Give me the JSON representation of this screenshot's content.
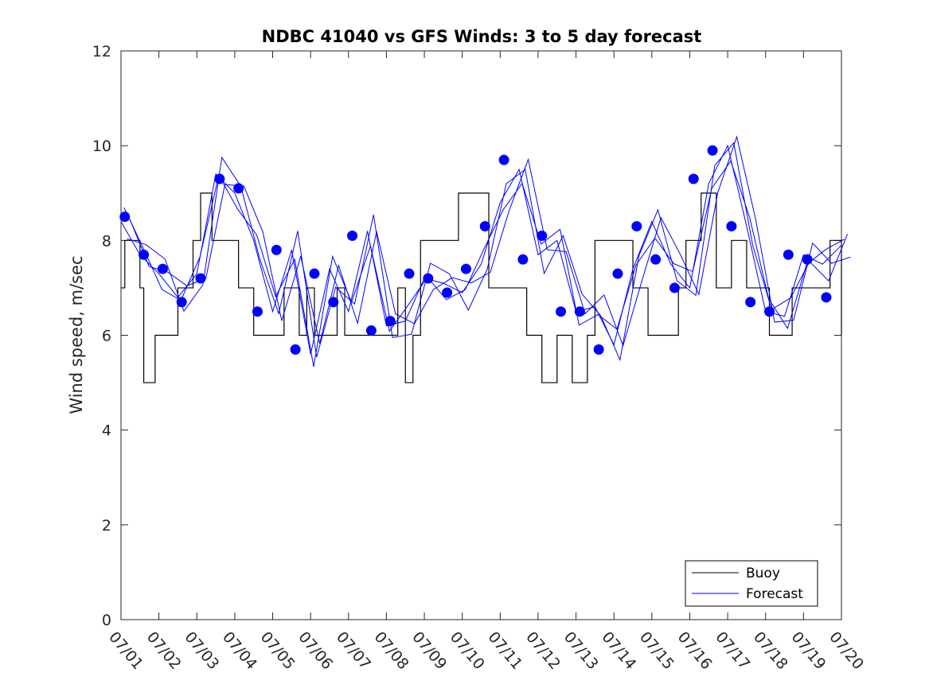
{
  "chart_data": {
    "type": "line",
    "title": "NDBC 41040 vs GFS Winds: 3 to 5 day forecast",
    "xlabel": "",
    "ylabel": "Wind speed, m/sec",
    "x_tick_labels": [
      "07/01",
      "07/02",
      "07/03",
      "07/04",
      "07/05",
      "07/06",
      "07/07",
      "07/08",
      "07/09",
      "07/10",
      "07/11",
      "07/12",
      "07/13",
      "07/14",
      "07/15",
      "07/16",
      "07/17",
      "07/18",
      "07/19",
      "07/20"
    ],
    "xlim": [
      "07/01",
      "07/20"
    ],
    "ylim": [
      0,
      12
    ],
    "y_ticks": [
      0,
      2,
      4,
      6,
      8,
      10,
      12
    ],
    "grid": false,
    "legend_position": "bottom-right",
    "colors": {
      "buoy": "#000000",
      "forecast": "#0000ff",
      "markers": "#0000ff"
    },
    "series": [
      {
        "name": "Buoy",
        "style": "step",
        "x": [
          0.0,
          0.1,
          0.3,
          0.5,
          0.6,
          0.9,
          1.0,
          1.1,
          1.3,
          1.5,
          1.7,
          1.9,
          2.1,
          2.3,
          2.4,
          2.6,
          2.9,
          3.1,
          3.3,
          3.5,
          3.7,
          3.9,
          4.1,
          4.3,
          4.5,
          4.7,
          4.9,
          5.1,
          5.3,
          5.5,
          5.7,
          5.9,
          6.1,
          6.3,
          6.5,
          6.7,
          6.9,
          7.1,
          7.3,
          7.5,
          7.7,
          7.9,
          8.1,
          8.3,
          8.5,
          8.7,
          8.9,
          9.1,
          9.3,
          9.5,
          9.7,
          9.9,
          10.1,
          10.3,
          10.5,
          10.7,
          10.9,
          11.1,
          11.3,
          11.5,
          11.7,
          11.9,
          12.1,
          12.3,
          12.5,
          12.7,
          12.9,
          13.1,
          13.3,
          13.5,
          13.7,
          13.9,
          14.1,
          14.3,
          14.5,
          14.7,
          14.9,
          15.1,
          15.3,
          15.5,
          15.7,
          15.9,
          16.1,
          16.3,
          16.5,
          16.7,
          16.9,
          17.1,
          17.3,
          17.5,
          17.7,
          17.9,
          18.1,
          18.3,
          18.5,
          18.7,
          18.9,
          19.0
        ],
        "values": [
          7,
          8,
          8,
          7,
          5,
          6,
          6,
          6,
          6,
          7,
          7,
          8,
          9,
          9,
          8,
          8,
          8,
          7,
          7,
          6,
          6,
          6,
          6,
          7,
          7,
          6,
          7,
          6,
          6,
          6,
          7,
          6,
          6,
          6,
          6,
          6,
          6,
          6,
          7,
          5,
          6,
          8,
          8,
          8,
          8,
          8,
          9,
          9,
          9,
          9,
          7,
          7,
          7,
          7,
          7,
          6,
          6,
          5,
          5,
          6,
          6,
          5,
          5,
          6,
          8,
          8,
          8,
          8,
          8,
          7,
          7,
          6,
          6,
          6,
          6,
          7,
          8,
          8,
          9,
          9,
          7,
          7,
          8,
          8,
          7,
          7,
          7,
          6,
          6,
          6,
          7,
          7,
          7,
          7,
          7,
          8,
          8,
          6
        ]
      },
      {
        "name": "Forecast",
        "style": "line",
        "note_series_count": 4,
        "x": [
          0.0,
          0.5,
          1.0,
          1.5,
          2.0,
          2.5,
          3.0,
          3.5,
          4.0,
          4.5,
          5.0,
          5.5,
          6.0,
          6.5,
          7.0,
          7.5,
          8.0,
          8.5,
          9.0,
          9.5,
          10.0,
          10.5,
          11.0,
          11.5,
          12.0,
          12.5,
          13.0,
          13.5,
          14.0,
          14.5,
          15.0,
          15.5,
          16.0,
          16.5,
          17.0,
          17.5,
          18.0,
          18.5,
          19.0
        ],
        "values": [
          8.4,
          7.7,
          7.3,
          6.8,
          7.3,
          9.4,
          9.0,
          8.0,
          6.5,
          7.8,
          5.6,
          7.4,
          6.5,
          8.2,
          6.2,
          6.3,
          7.2,
          7.1,
          6.9,
          7.5,
          8.8,
          9.5,
          7.7,
          8.0,
          6.5,
          6.6,
          5.8,
          7.4,
          8.4,
          7.5,
          7.0,
          9.2,
          10.0,
          8.3,
          6.5,
          6.4,
          7.7,
          7.5,
          7.9
        ]
      },
      {
        "name": "Forecast points",
        "style": "markers",
        "x": [
          0.1,
          0.6,
          1.1,
          1.6,
          2.1,
          2.6,
          3.1,
          3.6,
          4.1,
          4.6,
          5.1,
          5.6,
          6.1,
          6.6,
          7.1,
          7.6,
          8.1,
          8.6,
          9.1,
          9.6,
          10.1,
          10.6,
          11.1,
          11.6,
          12.1,
          12.6,
          13.1,
          13.6,
          14.1,
          14.6,
          15.1,
          15.6,
          16.1,
          16.6,
          17.1,
          17.6,
          18.1,
          18.6
        ],
        "values": [
          8.5,
          7.7,
          7.4,
          6.7,
          7.2,
          9.3,
          9.1,
          6.5,
          7.8,
          5.7,
          7.3,
          6.7,
          8.1,
          6.1,
          6.3,
          7.3,
          7.2,
          6.9,
          7.4,
          8.3,
          9.7,
          7.6,
          8.1,
          6.5,
          6.5,
          5.7,
          7.3,
          8.3,
          7.6,
          7.0,
          9.3,
          9.9,
          8.3,
          6.7,
          6.5,
          7.7,
          7.6,
          6.8
        ]
      }
    ],
    "legend": [
      {
        "label": "Buoy",
        "color": "#000000"
      },
      {
        "label": "Forecast",
        "color": "#0000ff"
      }
    ]
  }
}
